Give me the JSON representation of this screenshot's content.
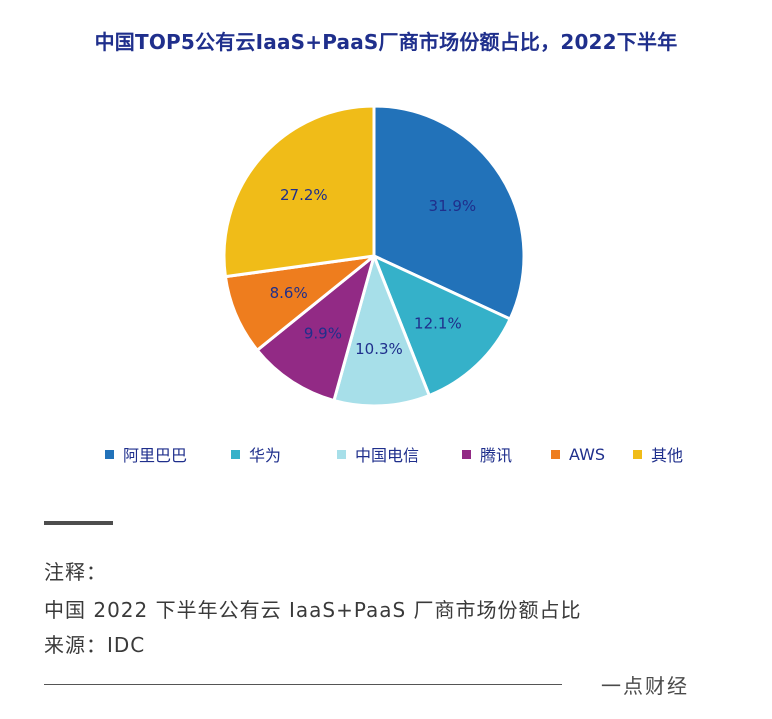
{
  "chart_data": {
    "type": "pie",
    "title": "中国TOP5公有云IaaS+PaaS厂商市场份额占比，2022下半年",
    "slices": [
      {
        "name": "阿里巴巴",
        "value": 31.9,
        "label": "31.9%",
        "color": "#2272b9"
      },
      {
        "name": "华为",
        "value": 12.1,
        "label": "12.1%",
        "color": "#35b1c9"
      },
      {
        "name": "中国电信",
        "value": 10.3,
        "label": "10.3%",
        "color": "#a7dfe9"
      },
      {
        "name": "腾讯",
        "value": 9.9,
        "label": "9.9%",
        "color": "#922a85"
      },
      {
        "name": "AWS",
        "value": 8.6,
        "label": "8.6%",
        "color": "#ee7d1e"
      },
      {
        "name": "其他",
        "value": 27.2,
        "label": "27.2%",
        "color": "#f0bc18"
      }
    ],
    "legend_placement": "bottom",
    "label_color": "#1f2f8c"
  },
  "notes": {
    "heading": "注释：",
    "line1": "中国 2022 下半年公有云 IaaS+PaaS 厂商市场份额占比",
    "line2": "来源：IDC"
  },
  "footer": {
    "brand": "一点财经"
  }
}
